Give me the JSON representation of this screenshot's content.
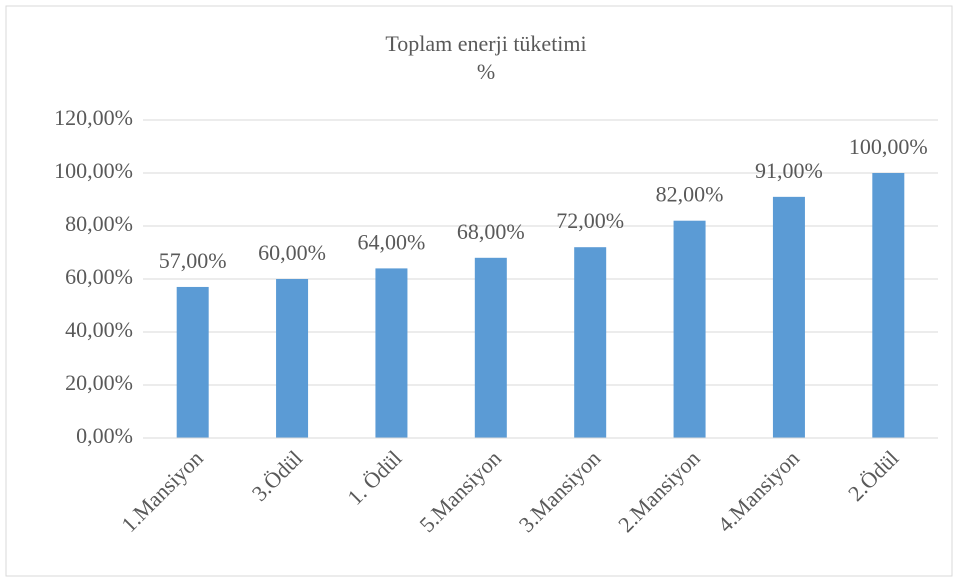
{
  "chart_data": {
    "type": "bar",
    "title": "Toplam enerji tüketimi",
    "subtitle": "%",
    "categories": [
      "1.Mansiyon",
      "3.Ödül",
      "1. Ödül",
      "5.Mansiyon",
      "3.Mansiyon",
      "2.Mansiyon",
      "4.Mansiyon",
      "2.Ödül"
    ],
    "values": [
      57,
      60,
      64,
      68,
      72,
      82,
      91,
      100
    ],
    "value_labels": [
      "57,00%",
      "60,00%",
      "64,00%",
      "68,00%",
      "72,00%",
      "82,00%",
      "91,00%",
      "100,00%"
    ],
    "color": "#5b9bd5",
    "ylim": [
      0,
      120
    ],
    "yticks": [
      {
        "value": 0,
        "label": "0,00%"
      },
      {
        "value": 20,
        "label": "20,00%"
      },
      {
        "value": 40,
        "label": "40,00%"
      },
      {
        "value": 60,
        "label": "60,00%"
      },
      {
        "value": 80,
        "label": "80,00%"
      },
      {
        "value": 100,
        "label": "100,00%"
      },
      {
        "value": 120,
        "label": "120,00%"
      }
    ],
    "grid": true
  }
}
